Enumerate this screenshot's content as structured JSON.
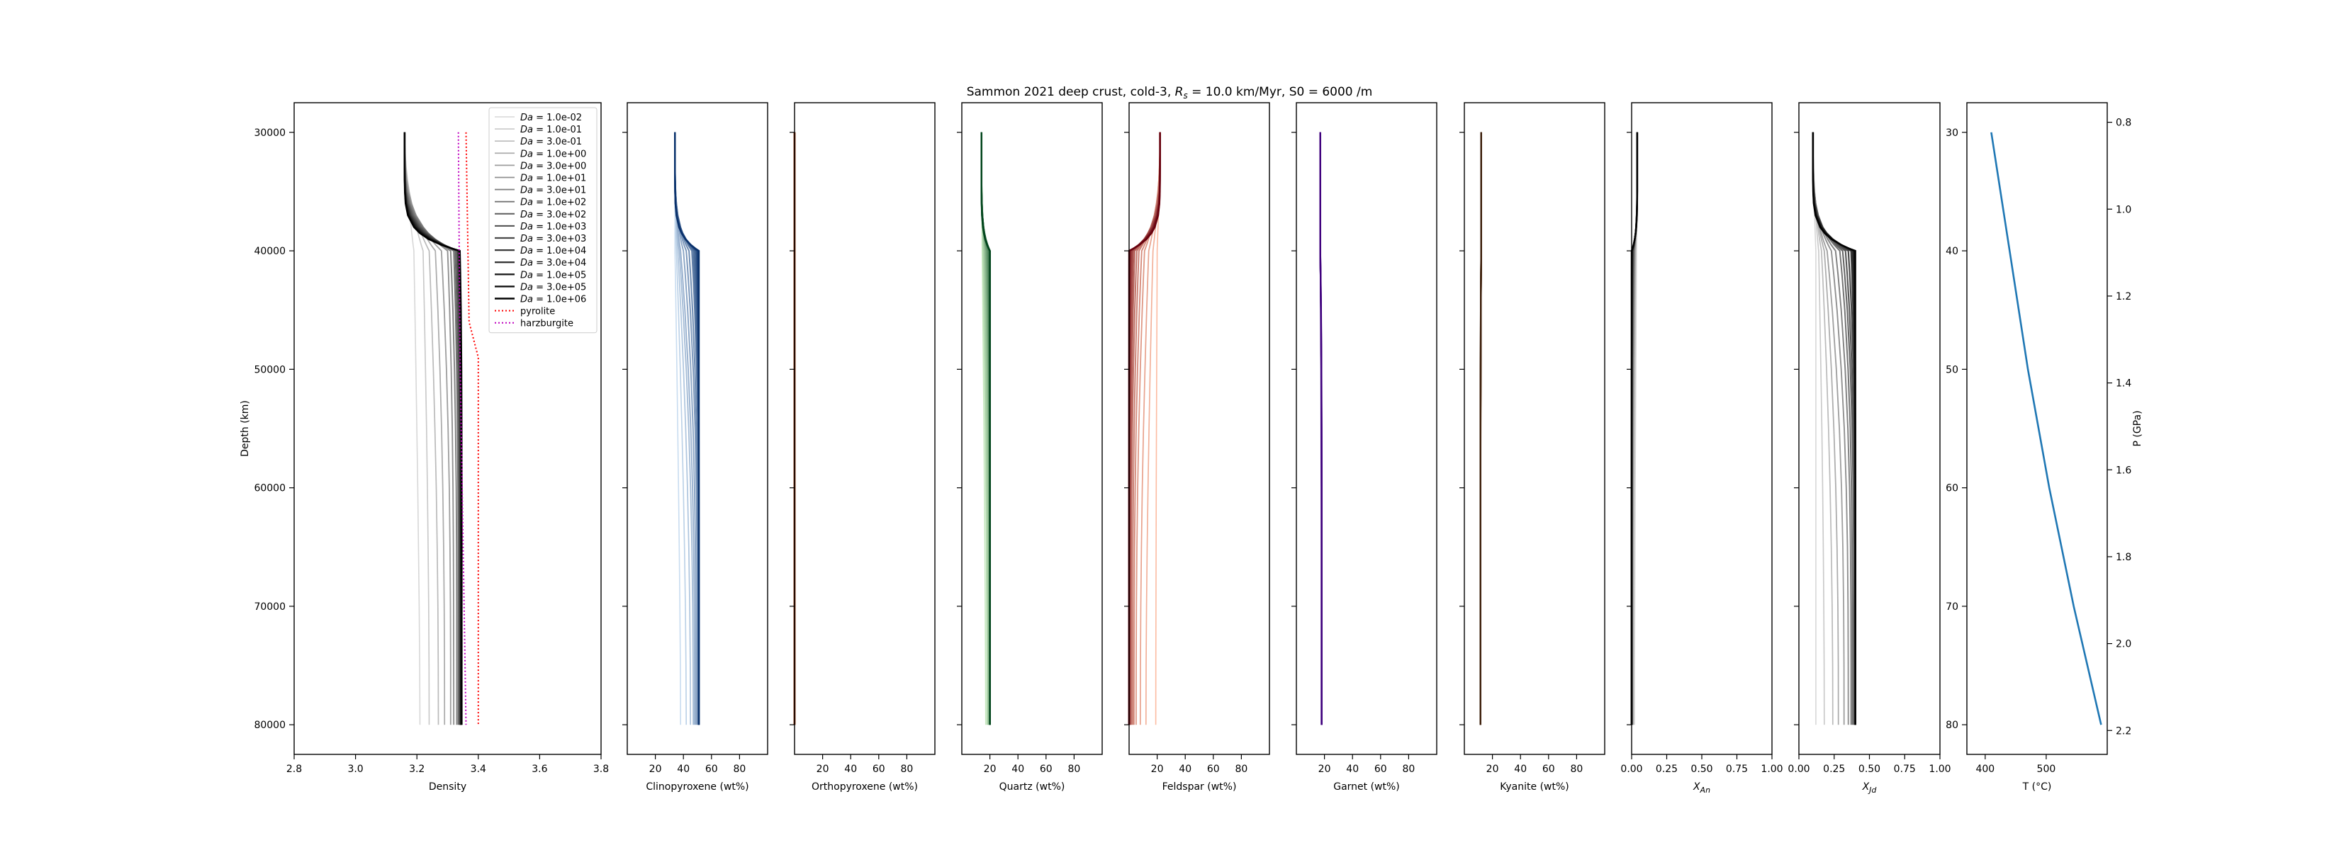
{
  "chart_data": {
    "type": "line",
    "title": "Sammon 2021 deep crust, cold-3, $R_s = 10.0$ km/Myr, $S0 = 6000$ /m",
    "title_parts": {
      "prefix": "Sammon 2021 deep crust, cold-3, ",
      "rs_symbol": "R",
      "rs_sub": "s",
      "rs_value": " = 10.0 km/Myr, ",
      "s0_text": "S0 = 6000 /m"
    },
    "depth_axis": {
      "label": "Depth (km)",
      "range": [
        27500,
        82500
      ],
      "ticks": [
        "30000",
        "40000",
        "50000",
        "60000",
        "70000",
        "80000"
      ],
      "tick_values": [
        30000,
        40000,
        50000,
        60000,
        70000,
        80000
      ]
    },
    "depth_values": [
      30000,
      35000,
      38000,
      39000,
      40000,
      45000,
      50000,
      60000,
      70000,
      80000
    ],
    "da_values": [
      "1.0e-02",
      "1.0e-01",
      "3.0e-01",
      "1.0e+00",
      "3.0e+00",
      "1.0e+01",
      "3.0e+01",
      "1.0e+02",
      "3.0e+02",
      "1.0e+03",
      "3.0e+03",
      "1.0e+04",
      "3.0e+04",
      "1.0e+05",
      "3.0e+05",
      "1.0e+06"
    ],
    "legend": {
      "placement": "top-right of first panel",
      "da_prefix": "Da",
      "da_sep": " = ",
      "entries": [
        "1.0e-02",
        "1.0e-01",
        "3.0e-01",
        "1.0e+00",
        "3.0e+00",
        "1.0e+01",
        "3.0e+01",
        "1.0e+02",
        "3.0e+02",
        "1.0e+03",
        "3.0e+03",
        "1.0e+04",
        "3.0e+04",
        "1.0e+05",
        "3.0e+05",
        "1.0e+06"
      ],
      "extra": [
        {
          "name": "pyrolite",
          "color": "#ff0000",
          "style": "dotted"
        },
        {
          "name": "harzburgite",
          "color": "#bf00bf",
          "style": "dotted"
        }
      ]
    },
    "panels": [
      {
        "id": "density",
        "xlabel": "Density",
        "xlim": [
          2.8,
          3.8
        ],
        "ticks": [
          "2.8",
          "3.0",
          "3.2",
          "3.4",
          "3.6",
          "3.8"
        ],
        "tick_values": [
          2.8,
          3.0,
          3.2,
          3.4,
          3.6,
          3.8
        ],
        "colormap": "greys",
        "start": 3.16,
        "plateau": [
          3.19,
          3.22,
          3.24,
          3.26,
          3.28,
          3.3,
          3.31,
          3.32,
          3.325,
          3.33,
          3.333,
          3.335,
          3.337,
          3.338,
          3.339,
          3.34
        ],
        "end": [
          3.21,
          3.24,
          3.27,
          3.29,
          3.31,
          3.32,
          3.33,
          3.335,
          3.338,
          3.34,
          3.341,
          3.342,
          3.343,
          3.344,
          3.345,
          3.346
        ],
        "step_end": 3.34,
        "references": [
          {
            "name": "pyrolite",
            "depths": [
              30000,
              46000,
              49000,
              80000
            ],
            "values": [
              3.36,
              3.37,
              3.4,
              3.4
            ]
          },
          {
            "name": "harzburgite",
            "depths": [
              30000,
              48000,
              80000
            ],
            "values": [
              3.335,
              3.34,
              3.36
            ]
          }
        ]
      },
      {
        "id": "clinopyroxene",
        "xlabel": "Clinopyroxene (wt%)",
        "xlim": [
          0,
          100
        ],
        "ticks": [
          "20",
          "40",
          "60",
          "80"
        ],
        "tick_values": [
          20,
          40,
          60,
          80
        ],
        "colormap": "blues",
        "start": 34,
        "plateau": [
          34,
          35,
          36,
          37,
          38,
          40,
          42,
          44,
          46,
          47,
          48,
          49,
          49.5,
          50,
          50.5,
          51
        ],
        "end": [
          38,
          42,
          45,
          47,
          48,
          49,
          50,
          50.5,
          51,
          51,
          51,
          51,
          51,
          51,
          51,
          51
        ],
        "step_end": 51
      },
      {
        "id": "orthopyroxene",
        "xlabel": "Orthopyroxene (wt%)",
        "xlim": [
          0,
          100
        ],
        "ticks": [
          "20",
          "40",
          "60",
          "80"
        ],
        "tick_values": [
          20,
          40,
          60,
          80
        ],
        "colormap": "oranges",
        "start": 0,
        "plateau": [
          0,
          0,
          0,
          0,
          0,
          0,
          0,
          0,
          0,
          0,
          0,
          0,
          0,
          0,
          0,
          0
        ],
        "end": [
          0,
          0,
          0,
          0,
          0,
          0,
          0,
          0,
          0,
          0,
          0,
          0,
          0,
          0,
          0,
          0
        ],
        "step_end": 0
      },
      {
        "id": "quartz",
        "xlabel": "Quartz (wt%)",
        "xlim": [
          0,
          100
        ],
        "ticks": [
          "20",
          "40",
          "60",
          "80"
        ],
        "tick_values": [
          20,
          40,
          60,
          80
        ],
        "colormap": "greens",
        "start": 14,
        "plateau": [
          14.5,
          15,
          15.5,
          16,
          16.5,
          17,
          17.5,
          18,
          18.5,
          19,
          19.5,
          20,
          20,
          20,
          20,
          20
        ],
        "end": [
          17,
          18,
          18.5,
          19,
          19.5,
          19.8,
          20,
          20,
          20,
          20,
          20,
          20,
          20,
          20,
          20,
          20
        ],
        "step_end": 20
      },
      {
        "id": "feldspar",
        "xlabel": "Feldspar (wt%)",
        "xlim": [
          0,
          100
        ],
        "ticks": [
          "20",
          "40",
          "60",
          "80"
        ],
        "tick_values": [
          20,
          40,
          60,
          80
        ],
        "colormap": "reds",
        "start": 22,
        "plateau": [
          20,
          17,
          14,
          11,
          9,
          7,
          5.5,
          4,
          3,
          2.2,
          1.5,
          1,
          0.6,
          0.3,
          0.1,
          0
        ],
        "end": [
          19,
          12,
          8,
          5,
          3.5,
          2.5,
          1.5,
          1,
          0.5,
          0.2,
          0,
          0,
          0,
          0,
          0,
          0
        ],
        "step_end": 0
      },
      {
        "id": "garnet",
        "xlabel": "Garnet (wt%)",
        "xlim": [
          0,
          100
        ],
        "ticks": [
          "20",
          "40",
          "60",
          "80"
        ],
        "tick_values": [
          20,
          40,
          60,
          80
        ],
        "colormap": "purples",
        "start": 17,
        "plateau": [
          17,
          17,
          17,
          17,
          17,
          17,
          17,
          17,
          17,
          17,
          17,
          17,
          17,
          17,
          17,
          17
        ],
        "end": [
          18,
          18,
          18,
          18,
          18,
          18,
          18,
          18,
          18,
          18,
          18,
          18,
          18,
          18,
          18,
          18
        ],
        "step_end": 18
      },
      {
        "id": "kyanite",
        "xlabel": "Kyanite (wt%)",
        "xlim": [
          0,
          100
        ],
        "ticks": [
          "20",
          "40",
          "60",
          "80"
        ],
        "tick_values": [
          20,
          40,
          60,
          80
        ],
        "colormap": "browns",
        "start": 12,
        "plateau": [
          12,
          12,
          12,
          12,
          12,
          12,
          12,
          12,
          12,
          12,
          12,
          12,
          12,
          12,
          12,
          12
        ],
        "end": [
          11.5,
          11.5,
          11.5,
          11.5,
          11.5,
          11.5,
          11.5,
          11.5,
          11.5,
          11.5,
          11.5,
          11.5,
          11.5,
          11.5,
          11.5,
          11.5
        ],
        "step_end": 11.5
      },
      {
        "id": "x_an",
        "xlabel_symbol": "X",
        "xlabel_sub": "An",
        "xlim": [
          0,
          1
        ],
        "ticks": [
          "0.00",
          "0.25",
          "0.50",
          "0.75",
          "1.00"
        ],
        "tick_values": [
          0,
          0.25,
          0.5,
          0.75,
          1.0
        ],
        "colormap": "greys",
        "start": 0.04,
        "plateau": [
          0.035,
          0.03,
          0.028,
          0.025,
          0.022,
          0.02,
          0.018,
          0.015,
          0.012,
          0.01,
          0.008,
          0.006,
          0.004,
          0.002,
          0.001,
          0
        ],
        "end": [
          0.02,
          0.015,
          0.01,
          0.008,
          0.005,
          0.004,
          0.003,
          0.002,
          0.001,
          0,
          0,
          0,
          0,
          0,
          0,
          0
        ],
        "step_end": 0
      },
      {
        "id": "x_jd",
        "xlabel_symbol": "X",
        "xlabel_sub": "Jd",
        "xlim": [
          0,
          1
        ],
        "ticks": [
          "0.00",
          "0.25",
          "0.50",
          "0.75",
          "1.00"
        ],
        "tick_values": [
          0,
          0.25,
          0.5,
          0.75,
          1.0
        ],
        "colormap": "greys",
        "start": 0.1,
        "plateau": [
          0.12,
          0.14,
          0.16,
          0.18,
          0.2,
          0.23,
          0.26,
          0.29,
          0.31,
          0.33,
          0.35,
          0.37,
          0.38,
          0.39,
          0.395,
          0.4
        ],
        "end": [
          0.12,
          0.18,
          0.24,
          0.28,
          0.32,
          0.35,
          0.37,
          0.38,
          0.39,
          0.395,
          0.4,
          0.4,
          0.4,
          0.4,
          0.4,
          0.4
        ],
        "step_end": 0.4
      }
    ],
    "temperature_panel": {
      "xlabel": "T (°C)",
      "xlim": [
        370,
        600
      ],
      "ticks": [
        "400",
        "500"
      ],
      "tick_values": [
        400,
        500
      ],
      "left_label": "",
      "left_ticks": [
        "30",
        "40",
        "50",
        "60",
        "70",
        "80"
      ],
      "right_label": "P (GPa)",
      "right_range": [
        0.755,
        2.255
      ],
      "right_ticks": [
        "0.8",
        "1.0",
        "1.2",
        "1.4",
        "1.6",
        "1.8",
        "2.0",
        "2.2"
      ],
      "right_tick_values": [
        0.8,
        1.0,
        1.2,
        1.4,
        1.6,
        1.8,
        2.0,
        2.2
      ],
      "line_color": "#1f77b4",
      "depth": [
        30,
        40,
        50,
        60,
        70,
        80
      ],
      "temperature": [
        410,
        440,
        470,
        505,
        545,
        590
      ]
    }
  }
}
